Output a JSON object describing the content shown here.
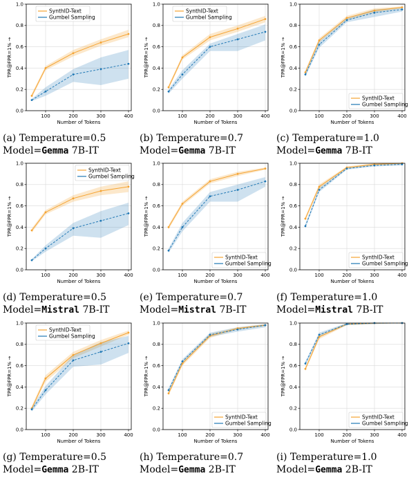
{
  "chart_data": [
    {
      "type": "line",
      "panel": "a",
      "caption_line1": "(a) Temperature=0.5",
      "caption_model_prefix": "Model=",
      "caption_model_name": "Gemma",
      "caption_model_suffix": " 7B-IT",
      "xlabel": "Number of Tokens",
      "ylabel": "TPR@FPR=1% →",
      "xlim": [
        30,
        410
      ],
      "ylim": [
        0,
        1.0
      ],
      "xticks": [
        100,
        200,
        300,
        400
      ],
      "yticks": [
        0.0,
        0.2,
        0.4,
        0.6,
        0.8,
        1.0
      ],
      "grid": true,
      "legend_loc": "upper left",
      "x": [
        50,
        100,
        200,
        300,
        400
      ],
      "series": [
        {
          "name": "SynthID-Text",
          "color": "#f5a331",
          "values": [
            0.14,
            0.4,
            0.54,
            0.64,
            0.72
          ],
          "band_low": [
            0.12,
            0.38,
            0.51,
            0.61,
            0.69
          ],
          "band_high": [
            0.16,
            0.42,
            0.57,
            0.67,
            0.76
          ]
        },
        {
          "name": "Gumbel Sampling",
          "color": "#1f77b4",
          "values": [
            0.1,
            0.18,
            0.34,
            0.39,
            0.44
          ],
          "band_low": [
            0.09,
            0.14,
            0.27,
            0.24,
            0.3
          ],
          "band_high": [
            0.11,
            0.22,
            0.39,
            0.5,
            0.57
          ]
        }
      ]
    },
    {
      "type": "line",
      "panel": "b",
      "caption_line1": "(b) Temperature=0.7",
      "caption_model_prefix": "Model=",
      "caption_model_name": "Gemma",
      "caption_model_suffix": " 7B-IT",
      "xlabel": "Number of Tokens",
      "ylabel": "TPR@FPR=1% →",
      "xlim": [
        30,
        410
      ],
      "ylim": [
        0,
        1.0
      ],
      "xticks": [
        100,
        200,
        300,
        400
      ],
      "yticks": [
        0.0,
        0.2,
        0.4,
        0.6,
        0.8,
        1.0
      ],
      "grid": true,
      "legend_loc": "upper left",
      "x": [
        50,
        100,
        200,
        300,
        400
      ],
      "series": [
        {
          "name": "SynthID-Text",
          "color": "#f5a331",
          "values": [
            0.22,
            0.5,
            0.69,
            0.77,
            0.86
          ],
          "band_low": [
            0.2,
            0.48,
            0.66,
            0.74,
            0.83
          ],
          "band_high": [
            0.24,
            0.52,
            0.72,
            0.8,
            0.89
          ]
        },
        {
          "name": "Gumbel Sampling",
          "color": "#1f77b4",
          "values": [
            0.18,
            0.34,
            0.6,
            0.67,
            0.74
          ],
          "band_low": [
            0.16,
            0.3,
            0.56,
            0.56,
            0.66
          ],
          "band_high": [
            0.2,
            0.38,
            0.63,
            0.72,
            0.81
          ]
        }
      ]
    },
    {
      "type": "line",
      "panel": "c",
      "caption_line1": "(c) Temperature=1.0",
      "caption_model_prefix": "Model=",
      "caption_model_name": "Gemma",
      "caption_model_suffix": " 7B-IT",
      "xlabel": "Number of Tokens",
      "ylabel": "TPR@FPR=1% →",
      "xlim": [
        30,
        410
      ],
      "ylim": [
        0,
        1.0
      ],
      "xticks": [
        100,
        200,
        300,
        400
      ],
      "yticks": [
        0.0,
        0.2,
        0.4,
        0.6,
        0.8,
        1.0
      ],
      "grid": true,
      "legend_loc": "lower right",
      "x": [
        50,
        100,
        200,
        300,
        400
      ],
      "series": [
        {
          "name": "SynthID-Text",
          "color": "#f5a331",
          "values": [
            0.36,
            0.66,
            0.87,
            0.94,
            0.97
          ],
          "band_low": [
            0.34,
            0.64,
            0.85,
            0.92,
            0.96
          ],
          "band_high": [
            0.38,
            0.68,
            0.89,
            0.96,
            0.98
          ]
        },
        {
          "name": "Gumbel Sampling",
          "color": "#1f77b4",
          "values": [
            0.34,
            0.62,
            0.85,
            0.92,
            0.95
          ],
          "band_low": [
            0.32,
            0.59,
            0.83,
            0.88,
            0.93
          ],
          "band_high": [
            0.36,
            0.65,
            0.87,
            0.95,
            0.97
          ]
        }
      ]
    },
    {
      "type": "line",
      "panel": "d",
      "caption_line1": "(d) Temperature=0.5",
      "caption_model_prefix": "Model=",
      "caption_model_name": "Mistral",
      "caption_model_suffix": " 7B-IT",
      "xlabel": "Number of Tokens",
      "ylabel": "TPR@FPR=1% →",
      "xlim": [
        30,
        410
      ],
      "ylim": [
        0,
        1.0
      ],
      "xticks": [
        100,
        200,
        300,
        400
      ],
      "yticks": [
        0.0,
        0.2,
        0.4,
        0.6,
        0.8,
        1.0
      ],
      "grid": true,
      "legend_loc": "upper right",
      "x": [
        50,
        100,
        200,
        300,
        400
      ],
      "series": [
        {
          "name": "SynthID-Text",
          "color": "#f5a331",
          "values": [
            0.37,
            0.54,
            0.67,
            0.74,
            0.78
          ],
          "band_low": [
            0.35,
            0.52,
            0.64,
            0.7,
            0.73
          ],
          "band_high": [
            0.39,
            0.56,
            0.7,
            0.78,
            0.83
          ]
        },
        {
          "name": "Gumbel Sampling",
          "color": "#1f77b4",
          "values": [
            0.09,
            0.2,
            0.39,
            0.46,
            0.53
          ],
          "band_low": [
            0.08,
            0.17,
            0.32,
            0.3,
            0.42
          ],
          "band_high": [
            0.1,
            0.23,
            0.44,
            0.55,
            0.63
          ]
        }
      ]
    },
    {
      "type": "line",
      "panel": "e",
      "caption_line1": "(e) Temperature=0.7",
      "caption_model_prefix": "Model=",
      "caption_model_name": "Mistral",
      "caption_model_suffix": " 7B-IT",
      "xlabel": "Number of Tokens",
      "ylabel": "TPR@FPR=1% →",
      "xlim": [
        30,
        410
      ],
      "ylim": [
        0,
        1.0
      ],
      "xticks": [
        100,
        200,
        300,
        400
      ],
      "yticks": [
        0.0,
        0.2,
        0.4,
        0.6,
        0.8,
        1.0
      ],
      "grid": true,
      "legend_loc": "lower right",
      "x": [
        50,
        100,
        200,
        300,
        400
      ],
      "series": [
        {
          "name": "SynthID-Text",
          "color": "#f5a331",
          "values": [
            0.4,
            0.62,
            0.83,
            0.9,
            0.95
          ],
          "band_low": [
            0.38,
            0.6,
            0.81,
            0.88,
            0.94
          ],
          "band_high": [
            0.42,
            0.64,
            0.85,
            0.92,
            0.96
          ]
        },
        {
          "name": "Gumbel Sampling",
          "color": "#1f77b4",
          "values": [
            0.18,
            0.4,
            0.69,
            0.75,
            0.83
          ],
          "band_low": [
            0.16,
            0.36,
            0.64,
            0.64,
            0.78
          ],
          "band_high": [
            0.2,
            0.44,
            0.73,
            0.8,
            0.87
          ]
        }
      ]
    },
    {
      "type": "line",
      "panel": "f",
      "caption_line1": "(f) Temperature=1.0",
      "caption_model_prefix": "Model=",
      "caption_model_name": "Mistral",
      "caption_model_suffix": " 7B-IT",
      "xlabel": "Number of Tokens",
      "ylabel": "TPR@FPR=1% →",
      "xlim": [
        30,
        410
      ],
      "ylim": [
        0,
        1.0
      ],
      "xticks": [
        100,
        200,
        300,
        400
      ],
      "yticks": [
        0.0,
        0.2,
        0.4,
        0.6,
        0.8,
        1.0
      ],
      "grid": true,
      "legend_loc": "lower right",
      "x": [
        50,
        100,
        200,
        300,
        400
      ],
      "series": [
        {
          "name": "SynthID-Text",
          "color": "#f5a331",
          "values": [
            0.48,
            0.78,
            0.96,
            0.99,
            1.0
          ],
          "band_low": [
            0.46,
            0.76,
            0.95,
            0.98,
            0.99
          ],
          "band_high": [
            0.5,
            0.8,
            0.97,
            1.0,
            1.0
          ]
        },
        {
          "name": "Gumbel Sampling",
          "color": "#1f77b4",
          "values": [
            0.41,
            0.75,
            0.95,
            0.98,
            0.99
          ],
          "band_low": [
            0.39,
            0.73,
            0.94,
            0.97,
            0.98
          ],
          "band_high": [
            0.43,
            0.77,
            0.96,
            0.99,
            1.0
          ]
        }
      ]
    },
    {
      "type": "line",
      "panel": "g",
      "caption_line1": "(g) Temperature=0.5",
      "caption_model_prefix": "Model=",
      "caption_model_name": "Gemma",
      "caption_model_suffix": " 2B-IT",
      "xlabel": "Number of Tokens",
      "ylabel": "TPR@FPR=1% →",
      "xlim": [
        30,
        410
      ],
      "ylim": [
        0,
        1.0
      ],
      "xticks": [
        100,
        200,
        300,
        400
      ],
      "yticks": [
        0.0,
        0.2,
        0.4,
        0.6,
        0.8,
        1.0
      ],
      "grid": true,
      "legend_loc": "upper left",
      "x": [
        50,
        100,
        200,
        300,
        400
      ],
      "series": [
        {
          "name": "SynthID-Text",
          "color": "#f5a331",
          "values": [
            0.2,
            0.48,
            0.7,
            0.81,
            0.91
          ],
          "band_low": [
            0.18,
            0.45,
            0.67,
            0.78,
            0.89
          ],
          "band_high": [
            0.22,
            0.51,
            0.73,
            0.84,
            0.93
          ]
        },
        {
          "name": "Gumbel Sampling",
          "color": "#1f77b4",
          "values": [
            0.19,
            0.37,
            0.65,
            0.73,
            0.81
          ],
          "band_low": [
            0.17,
            0.33,
            0.59,
            0.61,
            0.72
          ],
          "band_high": [
            0.21,
            0.41,
            0.7,
            0.82,
            0.88
          ]
        }
      ]
    },
    {
      "type": "line",
      "panel": "h",
      "caption_line1": "(h) Temperature=0.7",
      "caption_model_prefix": "Model=",
      "caption_model_name": "Gemma",
      "caption_model_suffix": " 2B-IT",
      "xlabel": "Number of Tokens",
      "ylabel": "TPR@FPR=1% →",
      "xlim": [
        30,
        410
      ],
      "ylim": [
        0,
        1.0
      ],
      "xticks": [
        100,
        200,
        300,
        400
      ],
      "yticks": [
        0.0,
        0.2,
        0.4,
        0.6,
        0.8,
        1.0
      ],
      "grid": true,
      "legend_loc": "lower right",
      "x": [
        50,
        100,
        200,
        300,
        400
      ],
      "series": [
        {
          "name": "SynthID-Text",
          "color": "#f5a331",
          "values": [
            0.34,
            0.62,
            0.88,
            0.95,
            0.98
          ],
          "band_low": [
            0.32,
            0.6,
            0.86,
            0.94,
            0.97
          ],
          "band_high": [
            0.36,
            0.64,
            0.9,
            0.96,
            0.99
          ]
        },
        {
          "name": "Gumbel Sampling",
          "color": "#1f77b4",
          "values": [
            0.37,
            0.64,
            0.89,
            0.94,
            0.98
          ],
          "band_low": [
            0.35,
            0.62,
            0.87,
            0.92,
            0.96
          ],
          "band_high": [
            0.39,
            0.66,
            0.91,
            0.96,
            0.99
          ]
        }
      ]
    },
    {
      "type": "line",
      "panel": "i",
      "caption_line1": "(i) Temperature=1.0",
      "caption_model_prefix": "Model=",
      "caption_model_name": "Gemma",
      "caption_model_suffix": " 2B-IT",
      "xlabel": "Number of Tokens",
      "ylabel": "TPR@FPR=1% →",
      "xlim": [
        30,
        410
      ],
      "ylim": [
        0,
        1.0
      ],
      "xticks": [
        100,
        200,
        300,
        400
      ],
      "yticks": [
        0.0,
        0.2,
        0.4,
        0.6,
        0.8,
        1.0
      ],
      "grid": true,
      "legend_loc": "lower right",
      "x": [
        50,
        100,
        200,
        300,
        400
      ],
      "series": [
        {
          "name": "SynthID-Text",
          "color": "#f5a331",
          "values": [
            0.57,
            0.87,
            0.99,
            1.0,
            1.0
          ],
          "band_low": [
            0.55,
            0.85,
            0.98,
            0.99,
            1.0
          ],
          "band_high": [
            0.59,
            0.89,
            1.0,
            1.0,
            1.0
          ]
        },
        {
          "name": "Gumbel Sampling",
          "color": "#1f77b4",
          "values": [
            0.62,
            0.89,
            0.99,
            1.0,
            1.0
          ],
          "band_low": [
            0.6,
            0.87,
            0.98,
            0.99,
            1.0
          ],
          "band_high": [
            0.64,
            0.91,
            1.0,
            1.0,
            1.0
          ]
        }
      ]
    }
  ]
}
